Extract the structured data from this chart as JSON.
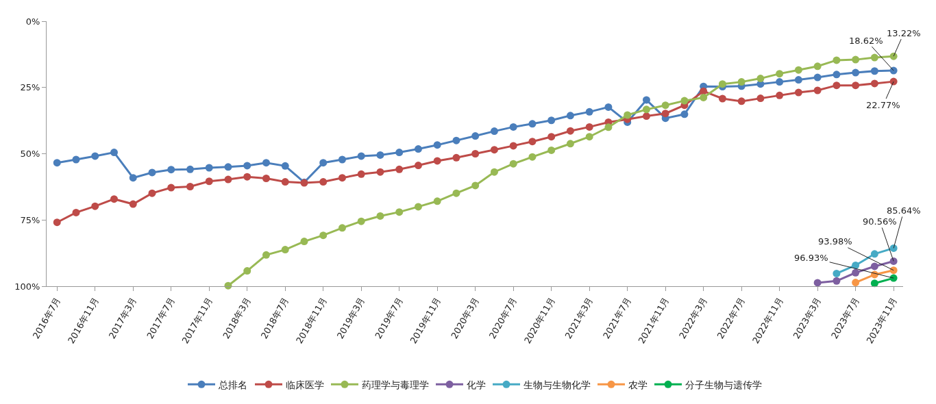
{
  "chart_data": {
    "type": "line",
    "categories": [
      "2016年7月",
      null,
      "2016年11月",
      null,
      "2017年3月",
      null,
      "2017年7月",
      null,
      "2017年11月",
      null,
      "2018年3月",
      null,
      "2018年7月",
      null,
      "2018年11月",
      null,
      "2019年3月",
      null,
      "2019年7月",
      null,
      "2019年11月",
      null,
      "2020年3月",
      null,
      "2020年7月",
      null,
      "2020年11月",
      null,
      "2021年3月",
      null,
      "2021年7月",
      null,
      "2021年11月",
      null,
      "2022年3月",
      null,
      "2022年7月",
      null,
      "2022年11月",
      null,
      "2023年3月",
      null,
      "2023年7月",
      null,
      "2023年11月"
    ],
    "series": [
      {
        "name": "总排名",
        "color": "#4a7ebb",
        "values": [
          53.4,
          52.2,
          50.9,
          49.5,
          59.1,
          57.1,
          56.0,
          55.9,
          55.3,
          55.0,
          54.5,
          53.4,
          54.6,
          60.8,
          53.4,
          52.2,
          50.9,
          50.5,
          49.5,
          48.2,
          46.7,
          45.0,
          43.3,
          41.5,
          39.9,
          38.7,
          37.4,
          35.6,
          34.2,
          32.4,
          38.1,
          29.7,
          36.6,
          35.1,
          24.6,
          24.7,
          24.5,
          23.7,
          22.9,
          22.1,
          21.2,
          20.1,
          19.4,
          18.8,
          18.62
        ],
        "value_labels": [
          null,
          null,
          null,
          null,
          null,
          null,
          null,
          null,
          null,
          null,
          null,
          null,
          null,
          null,
          null,
          null,
          null,
          null,
          null,
          null,
          null,
          null,
          null,
          null,
          null,
          null,
          null,
          null,
          null,
          null,
          null,
          null,
          null,
          null,
          null,
          null,
          null,
          null,
          null,
          null,
          null,
          null,
          null,
          null,
          "18.62%"
        ]
      },
      {
        "name": "临床医学",
        "color": "#be4b48",
        "values": [
          75.9,
          72.2,
          69.8,
          67.1,
          69.0,
          64.9,
          62.8,
          62.4,
          60.4,
          59.7,
          58.7,
          59.3,
          60.6,
          61.0,
          60.6,
          59.1,
          57.7,
          56.9,
          55.9,
          54.4,
          52.7,
          51.5,
          50.0,
          48.5,
          47.0,
          45.4,
          43.6,
          41.4,
          39.9,
          38.1,
          37.0,
          35.8,
          34.8,
          31.7,
          26.4,
          29.2,
          30.2,
          29.1,
          28.0,
          26.9,
          26.1,
          24.2,
          24.2,
          23.5,
          22.77
        ],
        "value_labels": [
          null,
          null,
          null,
          null,
          null,
          null,
          null,
          null,
          null,
          null,
          null,
          null,
          null,
          null,
          null,
          null,
          null,
          null,
          null,
          null,
          null,
          null,
          null,
          null,
          null,
          null,
          null,
          null,
          null,
          null,
          null,
          null,
          null,
          null,
          null,
          null,
          null,
          null,
          null,
          null,
          null,
          null,
          null,
          null,
          "22.77%"
        ]
      },
      {
        "name": "药理学与毒理学",
        "color": "#98b954",
        "values": [
          null,
          null,
          null,
          null,
          null,
          null,
          null,
          null,
          null,
          99.8,
          94.2,
          88.2,
          86.2,
          83.1,
          80.8,
          78.0,
          75.5,
          73.5,
          72.0,
          70.0,
          67.9,
          64.9,
          62.0,
          56.9,
          53.8,
          51.2,
          48.7,
          46.2,
          43.6,
          40.0,
          35.4,
          33.3,
          31.7,
          30.0,
          28.8,
          23.7,
          22.9,
          21.6,
          19.8,
          18.4,
          17.0,
          14.7,
          14.5,
          13.7,
          13.22
        ],
        "value_labels": [
          null,
          null,
          null,
          null,
          null,
          null,
          null,
          null,
          null,
          null,
          null,
          null,
          null,
          null,
          null,
          null,
          null,
          null,
          null,
          null,
          null,
          null,
          null,
          null,
          null,
          null,
          null,
          null,
          null,
          null,
          null,
          null,
          null,
          null,
          null,
          null,
          null,
          null,
          null,
          null,
          null,
          null,
          null,
          null,
          "13.22%"
        ]
      },
      {
        "name": "化学",
        "color": "#7d5fa0",
        "values": [
          null,
          null,
          null,
          null,
          null,
          null,
          null,
          null,
          null,
          null,
          null,
          null,
          null,
          null,
          null,
          null,
          null,
          null,
          null,
          null,
          null,
          null,
          null,
          null,
          null,
          null,
          null,
          null,
          null,
          null,
          null,
          null,
          null,
          null,
          null,
          null,
          null,
          null,
          null,
          null,
          98.7,
          98.0,
          94.9,
          92.5,
          90.56
        ],
        "value_labels": [
          null,
          null,
          null,
          null,
          null,
          null,
          null,
          null,
          null,
          null,
          null,
          null,
          null,
          null,
          null,
          null,
          null,
          null,
          null,
          null,
          null,
          null,
          null,
          null,
          null,
          null,
          null,
          null,
          null,
          null,
          null,
          null,
          null,
          null,
          null,
          null,
          null,
          null,
          null,
          null,
          null,
          null,
          null,
          null,
          "90.56%"
        ]
      },
      {
        "name": "生物与生物化学",
        "color": "#46aac5",
        "values": [
          null,
          null,
          null,
          null,
          null,
          null,
          null,
          null,
          null,
          null,
          null,
          null,
          null,
          null,
          null,
          null,
          null,
          null,
          null,
          null,
          null,
          null,
          null,
          null,
          null,
          null,
          null,
          null,
          null,
          null,
          null,
          null,
          null,
          null,
          null,
          null,
          null,
          null,
          null,
          null,
          null,
          95.2,
          92.1,
          87.8,
          85.64
        ],
        "value_labels": [
          null,
          null,
          null,
          null,
          null,
          null,
          null,
          null,
          null,
          null,
          null,
          null,
          null,
          null,
          null,
          null,
          null,
          null,
          null,
          null,
          null,
          null,
          null,
          null,
          null,
          null,
          null,
          null,
          null,
          null,
          null,
          null,
          null,
          null,
          null,
          null,
          null,
          null,
          null,
          null,
          null,
          null,
          null,
          null,
          "85.64%"
        ]
      },
      {
        "name": "农学",
        "color": "#f79646",
        "values": [
          null,
          null,
          null,
          null,
          null,
          null,
          null,
          null,
          null,
          null,
          null,
          null,
          null,
          null,
          null,
          null,
          null,
          null,
          null,
          null,
          null,
          null,
          null,
          null,
          null,
          null,
          null,
          null,
          null,
          null,
          null,
          null,
          null,
          null,
          null,
          null,
          null,
          null,
          null,
          null,
          null,
          null,
          98.6,
          95.6,
          93.98
        ],
        "value_labels": [
          null,
          null,
          null,
          null,
          null,
          null,
          null,
          null,
          null,
          null,
          null,
          null,
          null,
          null,
          null,
          null,
          null,
          null,
          null,
          null,
          null,
          null,
          null,
          null,
          null,
          null,
          null,
          null,
          null,
          null,
          null,
          null,
          null,
          null,
          null,
          null,
          null,
          null,
          null,
          null,
          null,
          null,
          null,
          null,
          "93.98%"
        ]
      },
      {
        "name": "分子生物与遗传学",
        "color": "#00b050",
        "values": [
          null,
          null,
          null,
          null,
          null,
          null,
          null,
          null,
          null,
          null,
          null,
          null,
          null,
          null,
          null,
          null,
          null,
          null,
          null,
          null,
          null,
          null,
          null,
          null,
          null,
          null,
          null,
          null,
          null,
          null,
          null,
          null,
          null,
          null,
          null,
          null,
          null,
          null,
          null,
          null,
          null,
          null,
          null,
          98.9,
          96.93
        ],
        "value_labels": [
          null,
          null,
          null,
          null,
          null,
          null,
          null,
          null,
          null,
          null,
          null,
          null,
          null,
          null,
          null,
          null,
          null,
          null,
          null,
          null,
          null,
          null,
          null,
          null,
          null,
          null,
          null,
          null,
          null,
          null,
          null,
          null,
          null,
          null,
          null,
          null,
          null,
          null,
          null,
          null,
          null,
          null,
          null,
          null,
          "96.93%"
        ]
      }
    ],
    "ylim": [
      100,
      0
    ],
    "yticks": [
      {
        "value": 0,
        "label": "0%"
      },
      {
        "value": 25,
        "label": "25%"
      },
      {
        "value": 50,
        "label": "50%"
      },
      {
        "value": 75,
        "label": "75%"
      },
      {
        "value": 100,
        "label": "100%"
      }
    ],
    "grid": false,
    "legend": "bottom",
    "marker": "circle",
    "line_style": "solid"
  }
}
